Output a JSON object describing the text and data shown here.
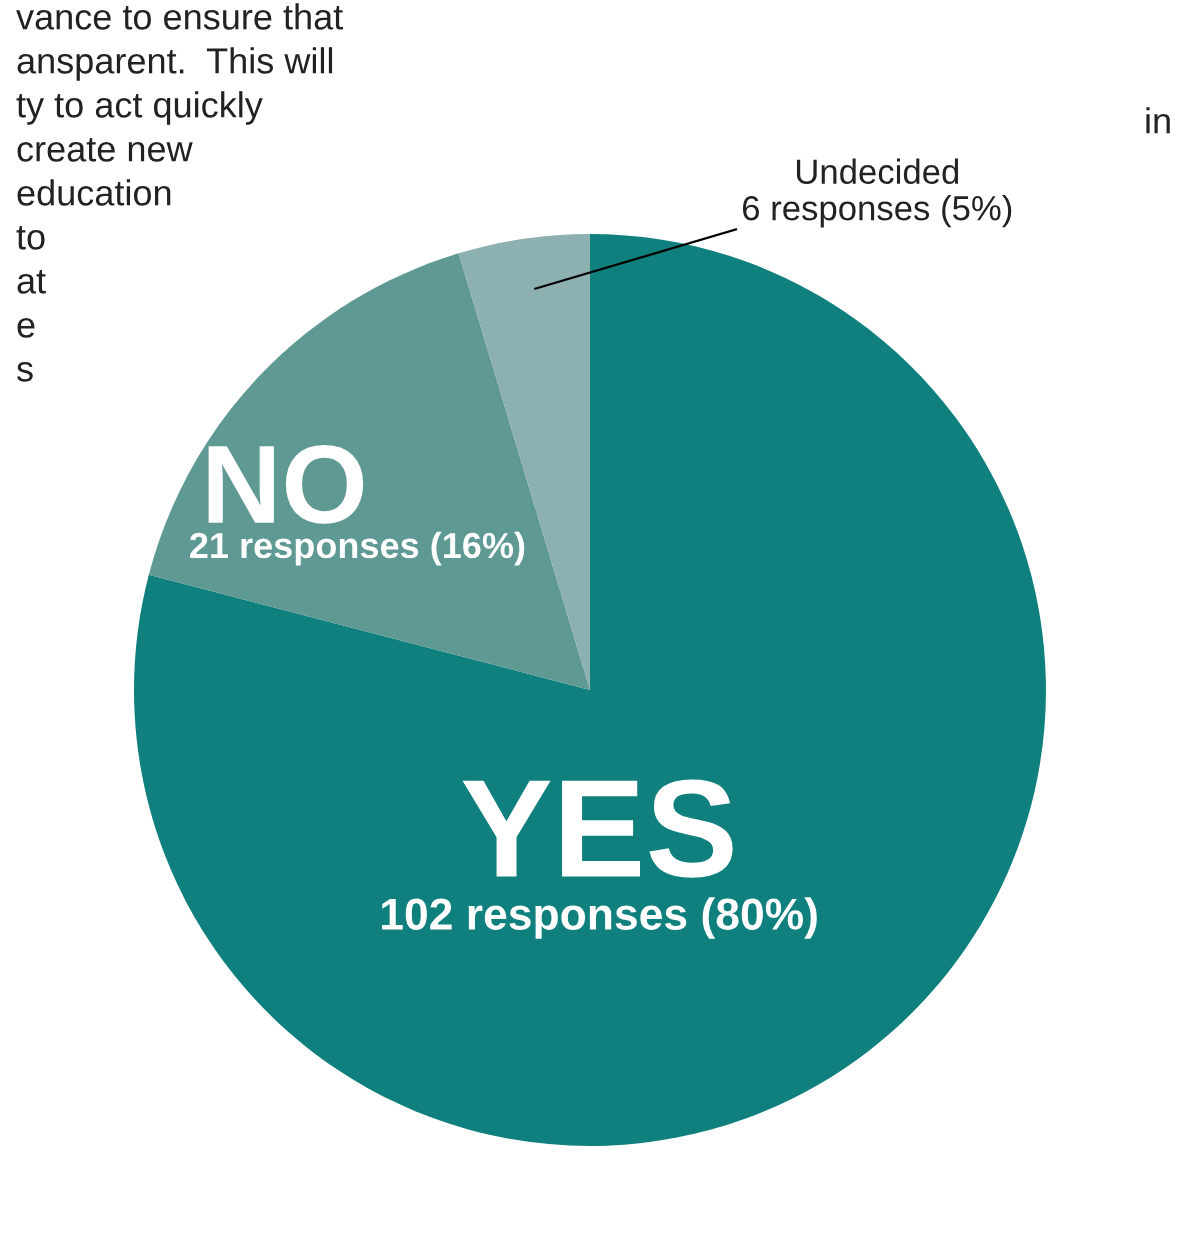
{
  "chart_data": {
    "type": "pie",
    "categories": [
      "YES",
      "NO",
      "Undecided"
    ],
    "values": [
      102,
      21,
      6
    ],
    "colors": [
      "#10807f",
      "#5f9993",
      "#8db0b0"
    ],
    "value_labels": [
      "102 responses (80%)",
      "21 responses (16%)",
      "6 responses (5%)"
    ],
    "annotations": [
      "vance to ensure that",
      "ansparent.  This will",
      "ty to act quickly",
      "create new",
      "education",
      "to",
      "at",
      "e",
      "s",
      "in"
    ]
  }
}
